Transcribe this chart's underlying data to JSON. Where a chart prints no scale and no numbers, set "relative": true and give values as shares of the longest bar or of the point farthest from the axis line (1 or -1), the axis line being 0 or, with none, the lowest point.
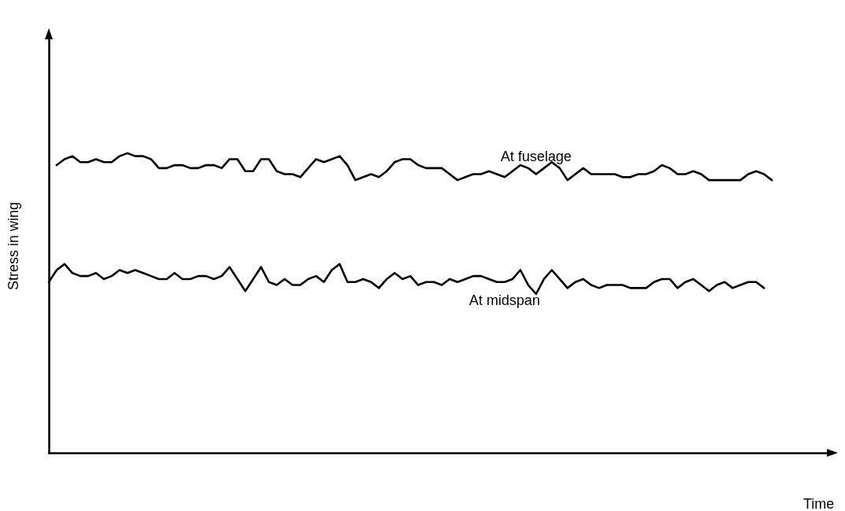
{
  "chart_data": {
    "type": "line",
    "relative": true,
    "xlabel": "Time",
    "ylabel": "Stress in wing",
    "marker": "none",
    "line_style": "solid",
    "categories": [
      null,
      null,
      null,
      null,
      null,
      null,
      null,
      null,
      null,
      null,
      null,
      null,
      null,
      null,
      null,
      null,
      null,
      null,
      null,
      null,
      null,
      null,
      null,
      null,
      null,
      null,
      null,
      null,
      null,
      null,
      null,
      null,
      null,
      null,
      null,
      null,
      null,
      null,
      null,
      null,
      null,
      null,
      null,
      null,
      null,
      null,
      null,
      null,
      null,
      null,
      null,
      null,
      null,
      null,
      null,
      null,
      null,
      null,
      null,
      null,
      null,
      null,
      null,
      null,
      null,
      null,
      null,
      null,
      null,
      null,
      null,
      null,
      null,
      null,
      null,
      null,
      null,
      null,
      null,
      null,
      null,
      null,
      null,
      null,
      null,
      null,
      null,
      null,
      null,
      null,
      null,
      null,
      null,
      null,
      null,
      null,
      null,
      null,
      null,
      null
    ],
    "series": [
      {
        "name": "At fuselage",
        "color": "#000000",
        "values": [
          null,
          0.96,
          0.98,
          0.99,
          0.97,
          0.97,
          0.98,
          0.97,
          0.97,
          0.99,
          1,
          0.99,
          0.99,
          0.98,
          0.95,
          0.95,
          0.96,
          0.96,
          0.95,
          0.95,
          0.96,
          0.96,
          0.95,
          0.98,
          0.98,
          0.94,
          0.94,
          0.98,
          0.98,
          0.94,
          0.93,
          0.93,
          0.92,
          0.95,
          0.98,
          0.97,
          0.98,
          0.99,
          0.96,
          0.91,
          0.92,
          0.93,
          0.92,
          0.94,
          0.97,
          0.98,
          0.98,
          0.96,
          0.95,
          0.95,
          0.95,
          0.93,
          0.91,
          0.92,
          0.93,
          0.93,
          0.94,
          0.93,
          0.92,
          0.94,
          0.96,
          0.95,
          0.93,
          0.95,
          0.97,
          0.95,
          0.91,
          0.93,
          0.95,
          0.93,
          0.93,
          0.93,
          0.93,
          0.92,
          0.92,
          0.93,
          0.93,
          0.94,
          0.96,
          0.95,
          0.93,
          0.93,
          0.94,
          0.93,
          0.91,
          0.91,
          0.91,
          0.91,
          0.91,
          0.93,
          0.94,
          0.93,
          0.91,
          null,
          null,
          null,
          null,
          null,
          null,
          null
        ]
      },
      {
        "name": "At midspan",
        "color": "#000000",
        "values": [
          0.57,
          0.61,
          0.63,
          0.6,
          0.59,
          0.59,
          0.6,
          0.58,
          0.59,
          0.61,
          0.6,
          0.61,
          0.6,
          0.59,
          0.58,
          0.58,
          0.6,
          0.58,
          0.58,
          0.59,
          0.59,
          0.58,
          0.59,
          0.62,
          0.58,
          0.54,
          0.58,
          0.62,
          0.57,
          0.56,
          0.58,
          0.56,
          0.56,
          0.58,
          0.59,
          0.57,
          0.61,
          0.63,
          0.57,
          0.57,
          0.58,
          0.57,
          0.55,
          0.58,
          0.6,
          0.58,
          0.59,
          0.56,
          0.57,
          0.57,
          0.56,
          0.58,
          0.57,
          0.58,
          0.59,
          0.59,
          0.58,
          0.57,
          0.57,
          0.58,
          0.61,
          0.56,
          0.53,
          0.58,
          0.61,
          0.58,
          0.55,
          0.57,
          0.58,
          0.56,
          0.55,
          0.56,
          0.56,
          0.56,
          0.55,
          0.55,
          0.55,
          0.57,
          0.58,
          0.58,
          0.55,
          0.57,
          0.58,
          0.56,
          0.54,
          0.56,
          0.57,
          0.55,
          0.56,
          0.57,
          0.57,
          0.55,
          null,
          null,
          null,
          null,
          null,
          null,
          null,
          null
        ]
      }
    ]
  }
}
